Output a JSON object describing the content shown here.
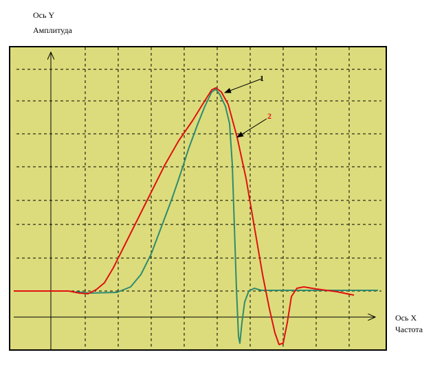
{
  "axes": {
    "y": {
      "name": "Ось Y",
      "label": "Амплитуда"
    },
    "x": {
      "name": "Ось X",
      "label": "Частота"
    }
  },
  "callouts": [
    "1",
    "2"
  ]
}
